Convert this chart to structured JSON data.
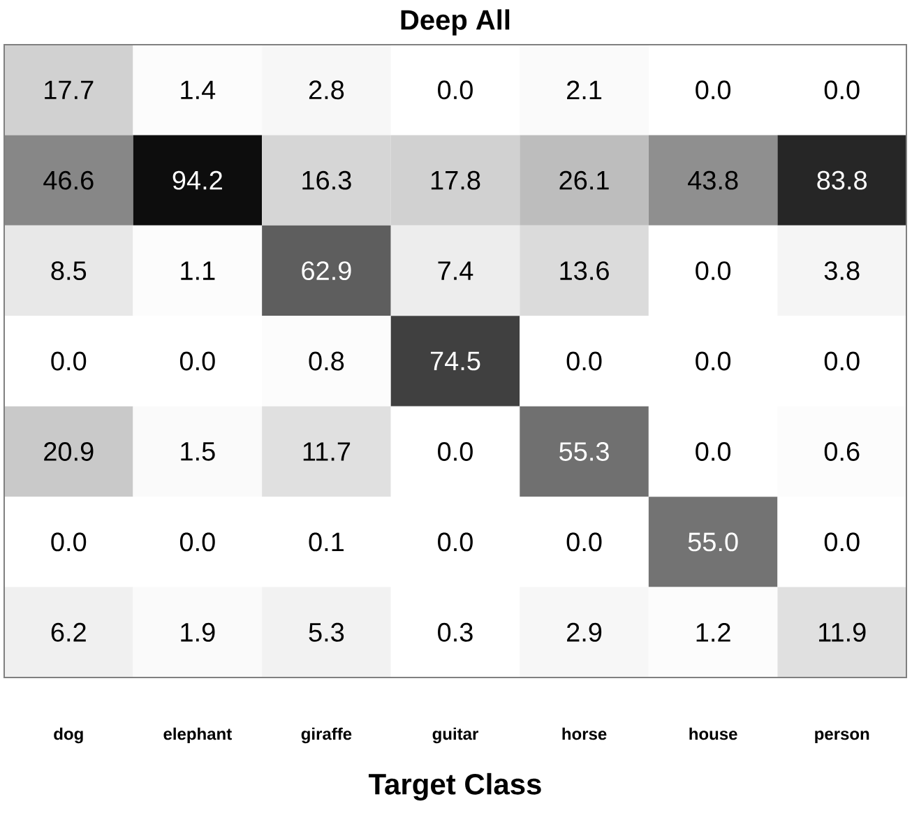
{
  "chart_data": {
    "type": "heatmap",
    "title": "Deep All",
    "xlabel": "Target Class",
    "categories": [
      "dog",
      "elephant",
      "giraffe",
      "guitar",
      "horse",
      "house",
      "person"
    ],
    "y_categories": [
      null,
      null,
      null,
      null,
      null,
      null,
      null
    ],
    "cell_labels": [
      [
        "17.7",
        "1.4",
        "2.8",
        "0.0",
        "2.1",
        "0.0",
        "0.0"
      ],
      [
        "46.6",
        "94.2",
        "16.3",
        "17.8",
        "26.1",
        "43.8",
        "83.8"
      ],
      [
        "8.5",
        "1.1",
        "62.9",
        "7.4",
        "13.6",
        "0.0",
        "3.8"
      ],
      [
        "0.0",
        "0.0",
        "0.8",
        "74.5",
        "0.0",
        "0.0",
        "0.0"
      ],
      [
        "20.9",
        "1.5",
        "11.7",
        "0.0",
        "55.3",
        "0.0",
        "0.6"
      ],
      [
        "0.0",
        "0.0",
        "0.1",
        "0.0",
        "0.0",
        "55.0",
        "0.0"
      ],
      [
        "6.2",
        "1.9",
        "5.3",
        "0.3",
        "2.9",
        "1.2",
        "11.9"
      ]
    ],
    "cells": [
      [
        17.7,
        1.4,
        2.8,
        0.0,
        2.1,
        0.0,
        0.0
      ],
      [
        46.6,
        94.2,
        16.3,
        17.8,
        26.1,
        43.8,
        83.8
      ],
      [
        8.5,
        1.1,
        62.9,
        7.4,
        13.6,
        0.0,
        3.8
      ],
      [
        0.0,
        0.0,
        0.8,
        74.5,
        0.0,
        0.0,
        0.0
      ],
      [
        20.9,
        1.5,
        11.7,
        0.0,
        55.3,
        0.0,
        0.6
      ],
      [
        0.0,
        0.0,
        0.1,
        0.0,
        0.0,
        55.0,
        0.0
      ],
      [
        6.2,
        1.9,
        5.3,
        0.3,
        2.9,
        1.2,
        11.9
      ]
    ]
  }
}
